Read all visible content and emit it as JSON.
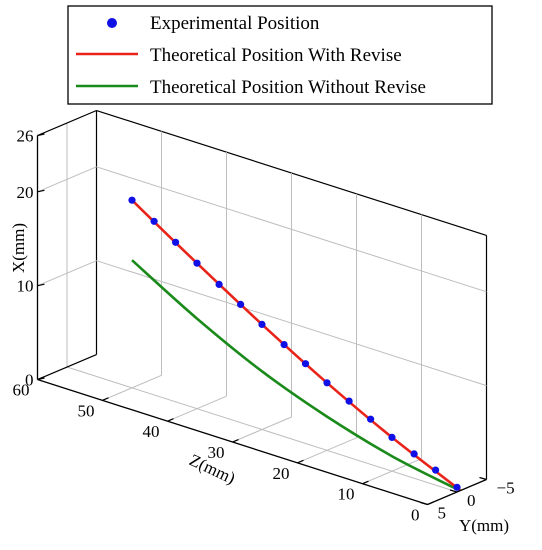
{
  "chart_data": {
    "type": "line",
    "projection": "3d",
    "axes": {
      "x": {
        "label": "X(mm)",
        "range": [
          0,
          26
        ],
        "ticks": [
          0,
          10,
          20,
          26
        ]
      },
      "y": {
        "label": "Y(mm)",
        "range": [
          -5,
          5
        ],
        "ticks": [
          -5,
          0,
          5
        ]
      },
      "z": {
        "label": "Z(mm)",
        "range": [
          0,
          60
        ],
        "ticks": [
          0,
          10,
          20,
          30,
          40,
          50,
          60
        ]
      }
    },
    "grid": true,
    "legend": {
      "position": "top"
    },
    "colors": {
      "experimental": "#1010e6",
      "revise": "#e8241a",
      "no_revise": "#1a8a1a"
    },
    "series": [
      {
        "name": "Experimental Position",
        "style": "markers",
        "points": [
          {
            "z": 0,
            "y": 0,
            "x": 0.5
          },
          {
            "z": 3.3,
            "y": 0,
            "x": 1.6
          },
          {
            "z": 6.6,
            "y": 0,
            "x": 2.6
          },
          {
            "z": 10,
            "y": 0,
            "x": 3.6
          },
          {
            "z": 13.3,
            "y": 0,
            "x": 4.8
          },
          {
            "z": 16.6,
            "y": 0,
            "x": 6.0
          },
          {
            "z": 20,
            "y": 0,
            "x": 7.2
          },
          {
            "z": 23.3,
            "y": 0,
            "x": 8.5
          },
          {
            "z": 26.6,
            "y": 0,
            "x": 9.8
          },
          {
            "z": 30,
            "y": 0,
            "x": 11.2
          },
          {
            "z": 33.3,
            "y": 0,
            "x": 12.6
          },
          {
            "z": 36.6,
            "y": 0,
            "x": 14.0
          },
          {
            "z": 40,
            "y": 0,
            "x": 15.5
          },
          {
            "z": 43.3,
            "y": 0,
            "x": 17.0
          },
          {
            "z": 46.6,
            "y": 0,
            "x": 18.5
          },
          {
            "z": 50,
            "y": 0,
            "x": 20.0
          }
        ]
      },
      {
        "name": "Theoretical Position With Revise",
        "style": "line",
        "points": [
          {
            "z": -0.5,
            "y": 0,
            "x": 0.3
          },
          {
            "z": 10,
            "y": 0,
            "x": 3.6
          },
          {
            "z": 20,
            "y": 0,
            "x": 7.2
          },
          {
            "z": 30,
            "y": 0,
            "x": 11.2
          },
          {
            "z": 40,
            "y": 0,
            "x": 15.5
          },
          {
            "z": 50,
            "y": 0,
            "x": 20.0
          }
        ]
      },
      {
        "name": "Theoretical Position Without Revise",
        "style": "line",
        "points": [
          {
            "z": 0,
            "y": 0,
            "x": 0.3
          },
          {
            "z": 10,
            "y": 0,
            "x": 1.6
          },
          {
            "z": 20,
            "y": 0,
            "x": 3.6
          },
          {
            "z": 30,
            "y": 0,
            "x": 6.2
          },
          {
            "z": 40,
            "y": 0,
            "x": 9.6
          },
          {
            "z": 50,
            "y": 0,
            "x": 13.6
          }
        ]
      }
    ]
  }
}
